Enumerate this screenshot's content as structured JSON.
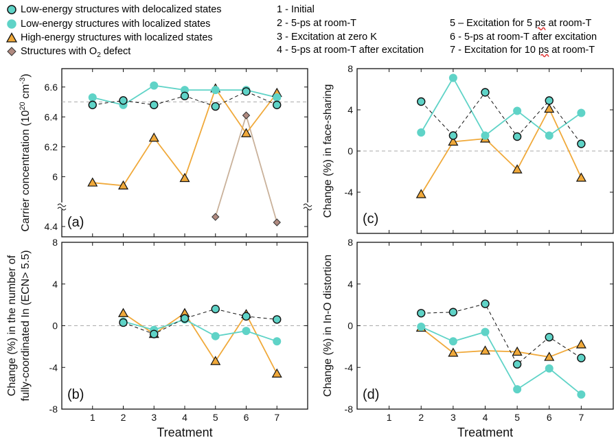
{
  "legend": {
    "series": [
      {
        "key": "low_deloc",
        "label": "Low-energy structures with delocalized states",
        "marker": "circle",
        "fill": "#5fd3c7",
        "stroke": "#111111"
      },
      {
        "key": "low_loc",
        "label": "Low-energy structures with localized states",
        "marker": "circle",
        "fill": "#5fd3c7",
        "stroke": "#5fd3c7"
      },
      {
        "key": "high_loc",
        "label": "High-energy structures with localized states",
        "marker": "triangle",
        "fill": "#f0a93a",
        "stroke": "#111111"
      },
      {
        "key": "o2",
        "label_prefix": "Structures with O",
        "label_sub": "2",
        "label_suffix": " defect",
        "marker": "diamond",
        "fill": "#b08a80",
        "stroke": "#333333"
      }
    ],
    "treatments_col1": [
      "1 - Initial",
      "2 - 5-ps at room-T",
      "3 - Excitation at zero K",
      "4 - 5-ps at room-T after excitation"
    ],
    "treatments_col2_prefix": [
      "5 – Excitation for 5 ",
      "6 - 5-ps at room-T after excitation",
      "7 - Excitation for 10 "
    ],
    "treatments_col2_wavy": [
      "ps",
      "",
      "ps"
    ],
    "treatments_col2_suffix": [
      " at room-T",
      "",
      " at room-T"
    ]
  },
  "colors": {
    "cyan": "#5fd3c7",
    "orange": "#f0a93a",
    "diamond": "#b08a80",
    "diamond_line": "#c9b19a",
    "black_dash": "#111111",
    "zero_line": "#aaaaaa"
  },
  "chart_data": [
    {
      "type": "line",
      "panel_label": "(a)",
      "ylabel": "Carrier concentration (10²⁰ cm⁻³)",
      "x": [
        1,
        2,
        3,
        4,
        5,
        6,
        7
      ],
      "xticks": [
        "1",
        "2",
        "3",
        "4",
        "5",
        "6",
        "7"
      ],
      "axis_break": true,
      "ylim_upper": [
        5.85,
        6.7
      ],
      "ylim_lower": [
        4.35,
        4.5
      ],
      "yticks": [
        "6.6",
        "6.4",
        "6.2",
        "6",
        "4.4"
      ],
      "ytick_values": [
        6.6,
        6.4,
        6.2,
        6.0,
        4.4
      ],
      "reference_line": 6.5,
      "series": [
        {
          "key": "low_deloc",
          "values": [
            6.48,
            6.51,
            6.48,
            6.54,
            6.47,
            6.57,
            6.48
          ]
        },
        {
          "key": "low_loc",
          "values": [
            6.53,
            6.48,
            6.61,
            6.58,
            6.58,
            6.58,
            6.53
          ]
        },
        {
          "key": "high_loc",
          "values": [
            5.96,
            5.94,
            6.26,
            5.99,
            6.59,
            6.29,
            6.56
          ]
        },
        {
          "key": "o2",
          "values": [
            null,
            null,
            null,
            null,
            4.47,
            6.41,
            4.43
          ]
        }
      ]
    },
    {
      "type": "line",
      "panel_label": "(c)",
      "ylabel": "Change (%) in face-sharing",
      "x": [
        1,
        2,
        3,
        4,
        5,
        6,
        7
      ],
      "xticks": [
        "1",
        "2",
        "3",
        "4",
        "5",
        "6",
        "7"
      ],
      "ylim": [
        -8,
        8
      ],
      "yticks": [
        "8",
        "4",
        "0",
        "-4"
      ],
      "ytick_values": [
        8,
        4,
        0,
        -4
      ],
      "reference_line": 0,
      "series": [
        {
          "key": "low_deloc",
          "values": [
            null,
            4.8,
            1.5,
            5.7,
            1.4,
            4.9,
            0.7
          ]
        },
        {
          "key": "low_loc",
          "values": [
            null,
            1.8,
            7.1,
            1.5,
            3.9,
            1.5,
            3.7
          ]
        },
        {
          "key": "high_loc",
          "values": [
            null,
            -4.2,
            0.9,
            1.2,
            -1.8,
            4.1,
            -2.6
          ]
        }
      ]
    },
    {
      "type": "line",
      "panel_label": "(b)",
      "ylabel": "Change (%) in the number of fully-coordinated In (ECN> 5.5)",
      "xlabel": "Treatment",
      "x": [
        1,
        2,
        3,
        4,
        5,
        6,
        7
      ],
      "xticks": [
        "1",
        "2",
        "3",
        "4",
        "5",
        "6",
        "7"
      ],
      "ylim": [
        -8,
        8
      ],
      "yticks": [
        "8",
        "4",
        "0",
        "-4",
        "-8"
      ],
      "ytick_values": [
        8,
        4,
        0,
        -4,
        -8
      ],
      "reference_line": 0,
      "series": [
        {
          "key": "low_deloc",
          "values": [
            null,
            0.3,
            -0.8,
            0.7,
            1.6,
            0.9,
            0.6
          ]
        },
        {
          "key": "low_loc",
          "values": [
            null,
            0.4,
            -0.4,
            0.6,
            -1.0,
            -0.5,
            -1.5
          ]
        },
        {
          "key": "high_loc",
          "values": [
            null,
            1.2,
            -0.8,
            1.2,
            -3.4,
            1.1,
            -4.6
          ]
        }
      ]
    },
    {
      "type": "line",
      "panel_label": "(d)",
      "ylabel": "Change (%) in In-O distortion",
      "xlabel": "Treatment",
      "x": [
        1,
        2,
        3,
        4,
        5,
        6,
        7
      ],
      "xticks": [
        "1",
        "2",
        "3",
        "4",
        "5",
        "6",
        "7"
      ],
      "ylim": [
        -8,
        8
      ],
      "yticks": [
        "8",
        "4",
        "0",
        "-4",
        "-8"
      ],
      "ytick_values": [
        8,
        4,
        0,
        -4,
        -8
      ],
      "reference_line": 0,
      "series": [
        {
          "key": "low_deloc",
          "values": [
            null,
            1.2,
            1.3,
            2.1,
            -3.7,
            -1.1,
            -3.1
          ]
        },
        {
          "key": "low_loc",
          "values": [
            null,
            -0.1,
            -1.5,
            -0.6,
            -6.1,
            -4.1,
            -6.6
          ]
        },
        {
          "key": "high_loc",
          "values": [
            null,
            -0.2,
            -2.6,
            -2.4,
            -2.5,
            -3.0,
            -1.8
          ]
        }
      ]
    }
  ]
}
